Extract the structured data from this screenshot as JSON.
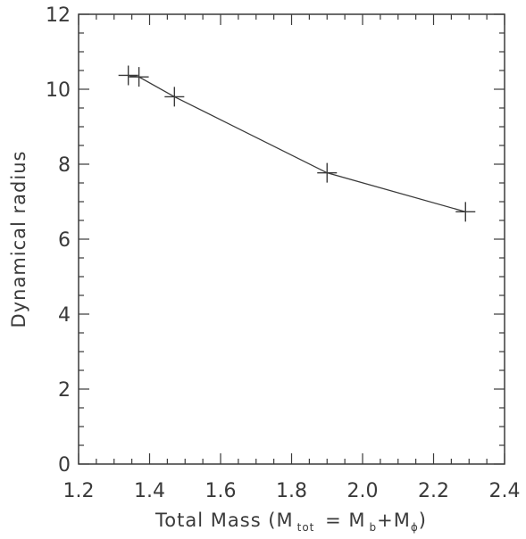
{
  "chart_data": {
    "type": "line",
    "title": "",
    "xlabel": {
      "prefix": "Total Mass (M",
      "sub1": "tot",
      "middle": " = M",
      "sub2": "b",
      "plus": "+M",
      "sub3": "ϕ",
      "suffix": ")"
    },
    "ylabel": "Dynamical radius",
    "xlim": [
      1.2,
      2.4
    ],
    "ylim": [
      0,
      12
    ],
    "xticks": [
      1.2,
      1.4,
      1.6,
      1.8,
      2.0,
      2.2,
      2.4
    ],
    "xtick_labels": [
      "1.2",
      "1.4",
      "1.6",
      "1.8",
      "2.0",
      "2.2",
      "2.4"
    ],
    "yticks": [
      0,
      2,
      4,
      6,
      8,
      10,
      12
    ],
    "ytick_labels": [
      "0",
      "2",
      "4",
      "6",
      "8",
      "10",
      "12"
    ],
    "grid": false,
    "series": [
      {
        "marker": "plus",
        "x": [
          1.34,
          1.37,
          1.47,
          1.9,
          2.29
        ],
        "y": [
          10.37,
          10.33,
          9.8,
          7.77,
          6.73
        ]
      }
    ],
    "colors": {
      "axis": "#3a3a3a",
      "line": "#3a3a3a"
    }
  }
}
